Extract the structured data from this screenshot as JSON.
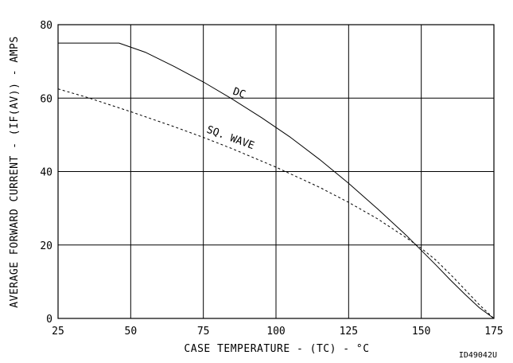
{
  "chart_data": {
    "type": "line",
    "xlabel": "CASE TEMPERATURE - (TC) - °C",
    "ylabel": "AVERAGE FORWARD CURRENT - (IF(AV)) - AMPS",
    "xlim": [
      25,
      175
    ],
    "ylim": [
      0,
      80
    ],
    "x_ticks": [
      "25",
      "50",
      "75",
      "100",
      "125",
      "150",
      "175"
    ],
    "y_ticks": [
      "0",
      "20",
      "40",
      "60",
      "80"
    ],
    "grid": true,
    "series": [
      {
        "name": "DC",
        "line_style": "solid",
        "x": [
          25,
          46,
          55,
          65,
          75,
          85,
          95,
          105,
          115,
          125,
          135,
          145,
          155,
          160,
          165,
          170,
          175
        ],
        "y": [
          75,
          75,
          72.5,
          68.6,
          64.4,
          59.7,
          54.7,
          49.3,
          43.3,
          36.8,
          29.8,
          22.5,
          14.6,
          10.5,
          6.6,
          2.9,
          0
        ]
      },
      {
        "name": "SQ. WAVE",
        "line_style": "dashed",
        "x": [
          25,
          35,
          50,
          65,
          75,
          85,
          100,
          115,
          125,
          135,
          145,
          150,
          155,
          160,
          165,
          170,
          175
        ],
        "y": [
          62.5,
          60.2,
          56.3,
          52.2,
          49.3,
          46.2,
          41.2,
          35.7,
          31.6,
          27.1,
          21.9,
          19.1,
          15.9,
          12.0,
          7.9,
          3.7,
          0
        ]
      }
    ],
    "annotations": [
      "DC",
      "SQ. WAVE"
    ],
    "footnote": "ID49042U"
  }
}
